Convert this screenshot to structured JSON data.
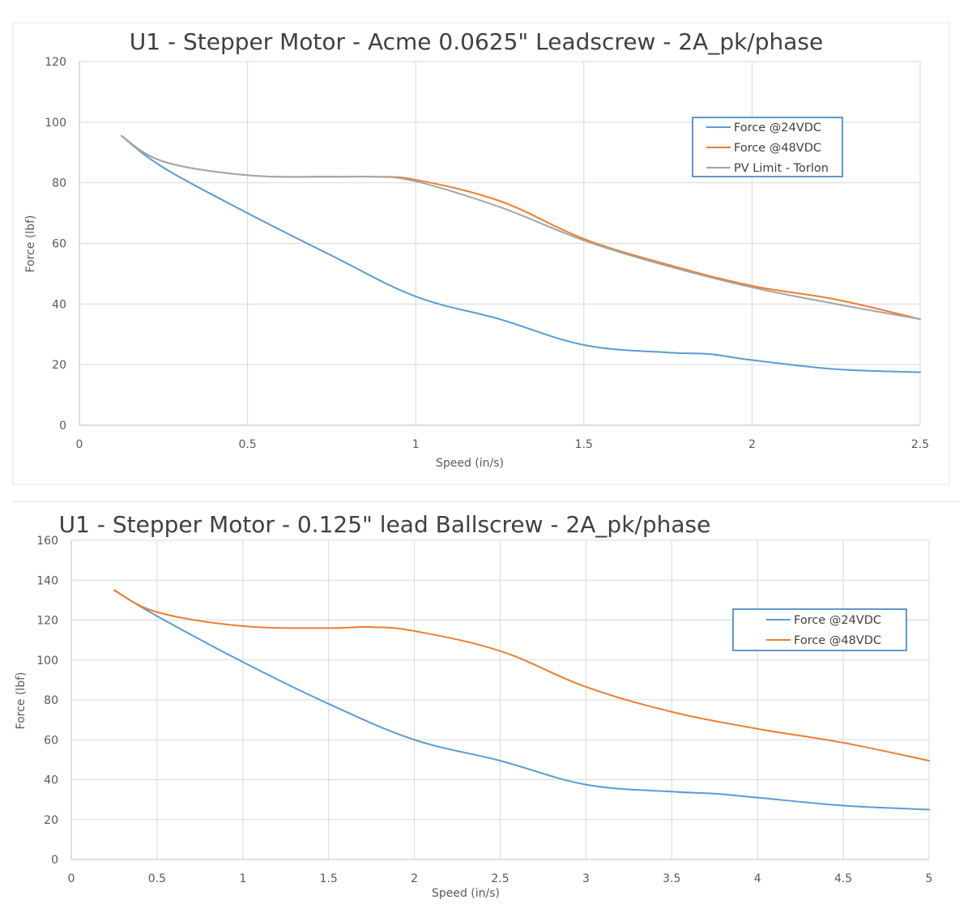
{
  "chart_data": [
    {
      "type": "line",
      "title": "U1 - Stepper Motor - Acme 0.0625\" Leadscrew - 2A_pk/phase",
      "xlabel": "Speed (in/s)",
      "ylabel": "Force (lbf)",
      "xlim": [
        0,
        2.5
      ],
      "ylim": [
        0,
        120
      ],
      "xticks": [
        "0",
        "0.5",
        "1",
        "1.5",
        "2",
        "2.5"
      ],
      "yticks": [
        "0",
        "20",
        "40",
        "60",
        "80",
        "100",
        "120"
      ],
      "grid": true,
      "legend": "top-right",
      "series": [
        {
          "name": "Force @24VDC",
          "color": "#5b9bd5",
          "x": [
            0.125,
            0.25,
            0.5,
            0.75,
            1.0,
            1.25,
            1.5,
            1.75,
            1.875,
            2.0,
            2.25,
            2.5
          ],
          "y": [
            95.5,
            85,
            70,
            56,
            42.5,
            35,
            26.5,
            24,
            23.5,
            21.5,
            18.5,
            17.5
          ]
        },
        {
          "name": "Force @48VDC",
          "color": "#ed7d31",
          "x": [
            0.125,
            0.25,
            0.5,
            0.75,
            0.875,
            1.0,
            1.25,
            1.5,
            1.75,
            2.0,
            2.25,
            2.5
          ],
          "y": [
            95.5,
            87,
            82.5,
            82,
            82,
            81,
            74,
            61.5,
            53,
            46,
            41.5,
            35
          ]
        },
        {
          "name": "PV Limit - Torlon",
          "color": "#a5a5a5",
          "x": [
            0.125,
            0.25,
            0.5,
            0.75,
            0.875,
            1.0,
            1.25,
            1.5,
            1.75,
            2.0,
            2.25,
            2.5
          ],
          "y": [
            95.5,
            87,
            82.5,
            82,
            82,
            80.5,
            72,
            61,
            52.5,
            45.5,
            40,
            35
          ]
        }
      ]
    },
    {
      "type": "line",
      "title": "U1 - Stepper Motor - 0.125\" lead Ballscrew - 2A_pk/phase",
      "xlabel": "Speed (in/s)",
      "ylabel": "Force (lbf)",
      "xlim": [
        0,
        5
      ],
      "ylim": [
        0,
        160
      ],
      "xticks": [
        "0",
        "0.5",
        "1",
        "1.5",
        "2",
        "2.5",
        "3",
        "3.5",
        "4",
        "4.5",
        "5"
      ],
      "yticks": [
        "0",
        "20",
        "40",
        "60",
        "80",
        "100",
        "120",
        "140",
        "160"
      ],
      "grid": true,
      "legend": "top-right",
      "series": [
        {
          "name": "Force @24VDC",
          "color": "#5b9bd5",
          "x": [
            0.25,
            0.5,
            1.0,
            1.5,
            2.0,
            2.5,
            3.0,
            3.5,
            3.75,
            4.0,
            4.5,
            5.0
          ],
          "y": [
            135,
            122,
            99,
            78,
            60,
            49.5,
            37.5,
            34,
            33,
            31,
            27,
            25
          ]
        },
        {
          "name": "Force @48VDC",
          "color": "#ed7d31",
          "x": [
            0.25,
            0.5,
            1.0,
            1.5,
            1.75,
            2.0,
            2.5,
            3.0,
            3.5,
            4.0,
            4.5,
            5.0
          ],
          "y": [
            135,
            124,
            117,
            116,
            116.5,
            114.5,
            104.5,
            86.5,
            74,
            65.5,
            58.5,
            49.5
          ]
        }
      ]
    }
  ]
}
